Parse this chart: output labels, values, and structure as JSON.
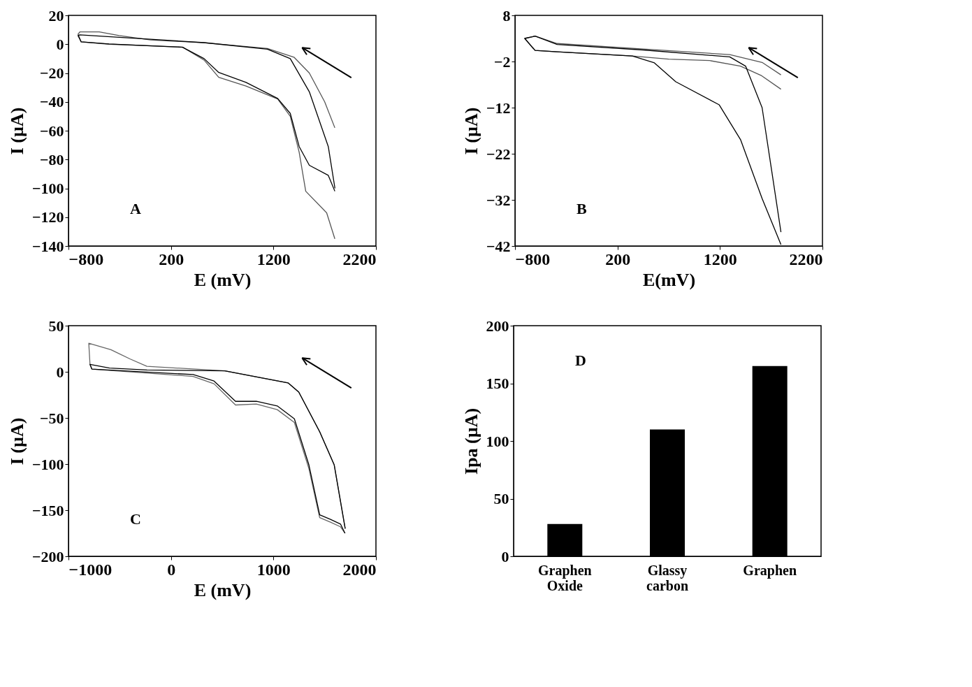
{
  "chart_data": [
    {
      "type": "line",
      "xlabel": "E (mV)",
      "ylabel": "I (µA)",
      "xlim": [
        -800,
        2200
      ],
      "xticks": [
        -800,
        200,
        1200,
        2200
      ],
      "ylim": [
        -140,
        20
      ],
      "yticks": [
        -140,
        -120,
        -100,
        -80,
        -60,
        -40,
        -20,
        0,
        20
      ],
      "annotations": [
        "A"
      ],
      "series": [
        {
          "color": "#555555",
          "x": [
            1799,
            1700,
            1550,
            1400,
            1141,
            523,
            0,
            -306,
            -500,
            -689,
            -707,
            -676,
            -404,
            313,
            523,
            666,
            932,
            1241,
            1364,
            1451,
            1515,
            1719,
            1799
          ],
          "values": [
            -58,
            -40,
            -20,
            -9,
            -3,
            1,
            3,
            6,
            8.5,
            8.5,
            7,
            1.6,
            0,
            -2,
            -11,
            -23,
            -29,
            -38,
            -50,
            -75,
            -102,
            -117,
            -135
          ]
        },
        {
          "color": "#000000",
          "x": [
            1800,
            1735,
            1550,
            1364,
            1141,
            523,
            -306,
            -689,
            -707,
            -676,
            -404,
            313,
            523,
            666,
            932,
            1241,
            1364,
            1451,
            1550,
            1735,
            1799
          ],
          "values": [
            -100,
            -71,
            -33,
            -10,
            -3.5,
            1.1,
            4.8,
            6.5,
            6,
            1.6,
            0.2,
            -2.1,
            -10,
            -19.6,
            -26.5,
            -37.6,
            -48,
            -71,
            -84,
            -91,
            -102
          ]
        }
      ]
    },
    {
      "type": "line",
      "xlabel": "E(mV)",
      "ylabel": "I (µA)",
      "xlim": [
        -800,
        2200
      ],
      "xticks": [
        -800,
        200,
        1200,
        2200
      ],
      "ylim": [
        -42,
        8
      ],
      "yticks": [
        -42,
        -32,
        -22,
        -12,
        -2,
        8
      ],
      "annotations": [
        "B"
      ],
      "series": [
        {
          "color": "#555555",
          "x": [
            1795,
            1611,
            1295,
            453,
            -389,
            -604,
            -705,
            -604,
            -389,
            345,
            700,
            1100,
            1400,
            1600,
            1795
          ],
          "values": [
            -4.9,
            -2.2,
            -0.5,
            0.7,
            1.9,
            3.5,
            3,
            0.4,
            0.1,
            -0.8,
            -1.5,
            -1.8,
            -3,
            -5,
            -8
          ]
        },
        {
          "color": "#000000",
          "x": [
            1795,
            1700,
            1611,
            1450,
            1295,
            453,
            -389,
            -604,
            -705,
            -604,
            -389,
            345,
            560,
            769,
            1193,
            1402,
            1611,
            1795
          ],
          "values": [
            -39,
            -25,
            -12,
            -3,
            -1,
            0.5,
            1.7,
            3.5,
            3,
            0.4,
            0.1,
            -0.8,
            -2.3,
            -6.4,
            -11.4,
            -19,
            -31.7,
            -41.7
          ]
        }
      ]
    },
    {
      "type": "line",
      "xlabel": "E (mV)",
      "ylabel": "I (µA)",
      "xlim": [
        -1000,
        2000
      ],
      "xticks": [
        -1000,
        0,
        1000,
        2000
      ],
      "ylim": [
        -200,
        50
      ],
      "yticks": [
        -200,
        -150,
        -100,
        -50,
        0,
        50
      ],
      "annotations": [
        "C"
      ],
      "series": [
        {
          "color": "#666666",
          "x": [
            1700,
            1593,
            1451,
            1247,
            1142,
            525,
            -235,
            -401,
            -586,
            -802,
            -790,
            -772,
            216,
            420,
            630,
            833,
            1037,
            1204,
            1346,
            1451,
            1556,
            1654,
            1698
          ],
          "values": [
            -170,
            -101,
            -65,
            -22,
            -12,
            1,
            6,
            14,
            24,
            31,
            8,
            3,
            -5,
            -13,
            -36,
            -35,
            -41,
            -55,
            -105,
            -158,
            -163,
            -168,
            -175
          ]
        },
        {
          "color": "#000000",
          "x": [
            1700,
            1593,
            1451,
            1247,
            1142,
            525,
            -235,
            -600,
            -790,
            -772,
            216,
            420,
            630,
            833,
            1037,
            1204,
            1346,
            1451,
            1556,
            1654,
            1698
          ],
          "values": [
            -170,
            -101,
            -65,
            -22,
            -12,
            1,
            2,
            4,
            8,
            3,
            -3,
            -10,
            -32,
            -32,
            -37,
            -51,
            -101,
            -155,
            -160,
            -165,
            -175
          ]
        }
      ]
    },
    {
      "type": "bar",
      "ylabel": "Ipa (µA)",
      "categories": [
        "Graphen Oxide",
        "Glassy carbon",
        "Graphen"
      ],
      "values": [
        28,
        110,
        165
      ],
      "color": "#000000",
      "ylim": [
        0,
        200
      ],
      "yticks": [
        0,
        50,
        100,
        150,
        200
      ],
      "annotations": [
        "D"
      ]
    }
  ]
}
